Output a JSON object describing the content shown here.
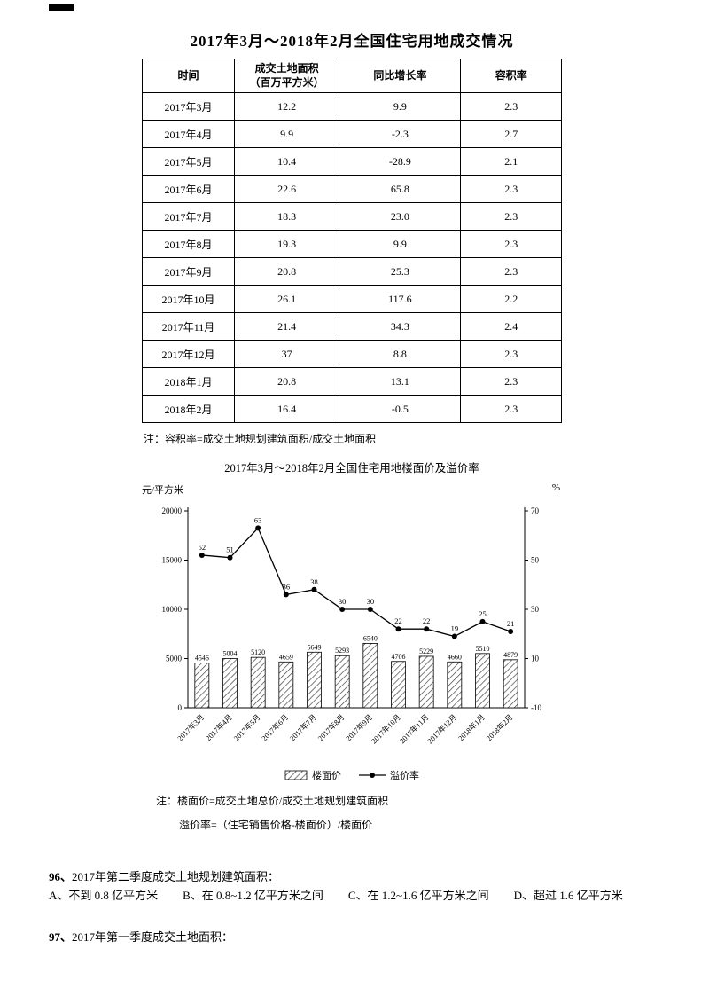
{
  "table_section": {
    "title": "2017年3月～2018年2月全国住宅用地成交情况",
    "note": "注：容积率=成交土地规划建筑面积/成交土地面积"
  },
  "table": {
    "headers": [
      "时间",
      "成交土地面积\n（百万平方米）",
      "同比增长率",
      "容积率"
    ],
    "rows": [
      [
        "2017年3月",
        "12.2",
        "9.9",
        "2.3"
      ],
      [
        "2017年4月",
        "9.9",
        "-2.3",
        "2.7"
      ],
      [
        "2017年5月",
        "10.4",
        "-28.9",
        "2.1"
      ],
      [
        "2017年6月",
        "22.6",
        "65.8",
        "2.3"
      ],
      [
        "2017年7月",
        "18.3",
        "23.0",
        "2.3"
      ],
      [
        "2017年8月",
        "19.3",
        "9.9",
        "2.3"
      ],
      [
        "2017年9月",
        "20.8",
        "25.3",
        "2.3"
      ],
      [
        "2017年10月",
        "26.1",
        "117.6",
        "2.2"
      ],
      [
        "2017年11月",
        "21.4",
        "34.3",
        "2.4"
      ],
      [
        "2017年12月",
        "37",
        "8.8",
        "2.3"
      ],
      [
        "2018年1月",
        "20.8",
        "13.1",
        "2.3"
      ],
      [
        "2018年2月",
        "16.4",
        "-0.5",
        "2.3"
      ]
    ]
  },
  "chart_data": {
    "type": "bar+line",
    "title": "2017年3月～2018年2月全国住宅用地楼面价及溢价率",
    "unit_left": "元/平方米",
    "unit_right": "%",
    "categories": [
      "2017年3月",
      "2017年4月",
      "2017年5月",
      "2017年6月",
      "2017年7月",
      "2017年8月",
      "2017年9月",
      "2017年10月",
      "2017年11月",
      "2017年12月",
      "2018年1月",
      "2018年2月"
    ],
    "series": [
      {
        "name": "楼面价",
        "type": "bar",
        "axis": "left",
        "values": [
          4546,
          5004,
          5120,
          4659,
          5649,
          5293,
          6540,
          4706,
          5229,
          4660,
          5510,
          4879
        ]
      },
      {
        "name": "溢价率",
        "type": "line",
        "axis": "right",
        "values": [
          52,
          51,
          63,
          36,
          38,
          30,
          30,
          22,
          22,
          19,
          25,
          21
        ]
      }
    ],
    "ylim_left": [
      0,
      20000
    ],
    "ylim_right": [
      -10,
      70
    ],
    "left_ticks": [
      0,
      5000,
      10000,
      15000,
      20000
    ],
    "right_ticks": [
      -10,
      10,
      30,
      50,
      70
    ],
    "grid": false,
    "legend_position": "bottom",
    "notes": [
      "注：楼面价=成交土地总价/成交土地规划建筑面积",
      "溢价率=（住宅销售价格-楼面价）/楼面价"
    ]
  },
  "questions": [
    {
      "number": "96、",
      "text": "2017年第二季度成交土地规划建筑面积：",
      "options": [
        "A、不到 0.8 亿平方米",
        "B、在 0.8~1.2 亿平方米之间",
        "C、在 1.2~1.6 亿平方米之间",
        "D、超过 1.6 亿平方米"
      ]
    },
    {
      "number": "97、",
      "text": "2017年第一季度成交土地面积："
    }
  ]
}
